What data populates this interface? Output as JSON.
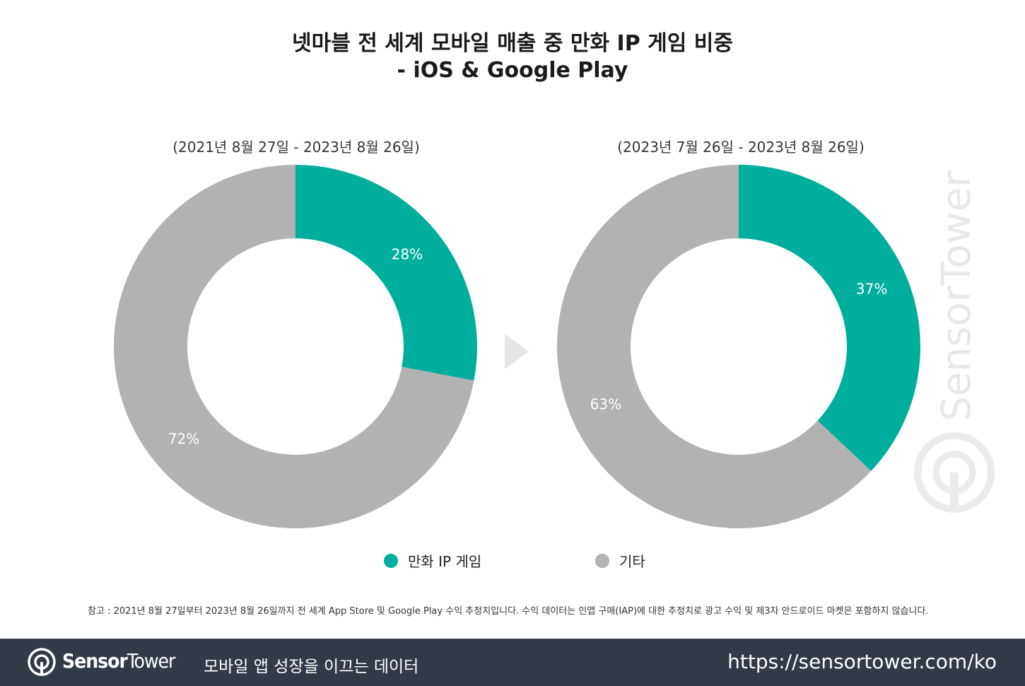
{
  "title_line1": "넷마블 전 세계 모바일 매출 중 만화 IP 게임 비중",
  "title_line2": "- iOS & Google Play",
  "chart_data": [
    {
      "type": "pie",
      "donut": true,
      "period": "(2021년 8월 27일 - 2023년 8월 26일)",
      "slices": [
        {
          "name": "만화 IP 게임",
          "value": 28,
          "label": "28%",
          "color": "#00AE9E"
        },
        {
          "name": "기타",
          "value": 72,
          "label": "72%",
          "color": "#B2B2B2"
        }
      ]
    },
    {
      "type": "pie",
      "donut": true,
      "period": "(2023년 7월 26일 - 2023년 8월 26일)",
      "slices": [
        {
          "name": "만화 IP 게임",
          "value": 37,
          "label": "37%",
          "color": "#00AE9E"
        },
        {
          "name": "기타",
          "value": 63,
          "label": "63%",
          "color": "#B2B2B2"
        }
      ]
    }
  ],
  "legend": [
    {
      "label": "만화 IP 게임",
      "color": "#00AE9E"
    },
    {
      "label": "기타",
      "color": "#B2B2B2"
    }
  ],
  "note": "참고 : 2021년 8월 27일부터 2023년 8월 26일까지 전 세계 App Store 및 Google Play 수익 추정치입니다. 수익 데이터는 인앱 구매(IAP)에 대한 추정치로 광고 수익 및 제3자 안드로이드 마켓은 포함하지 않습니다.",
  "watermark": "SensorTower",
  "footer": {
    "brand_bold": "Sensor",
    "brand_light": "Tower",
    "tagline": "모바일 앱 성장을 이끄는 데이터",
    "url": "https://sensortower.com/ko"
  }
}
